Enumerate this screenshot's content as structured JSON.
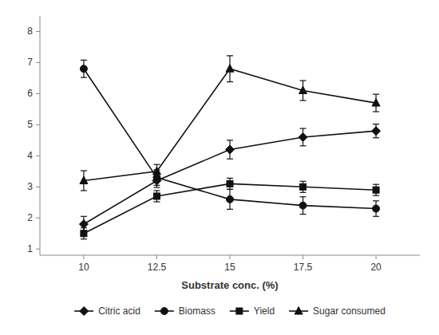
{
  "chart_data": {
    "type": "line",
    "xlabel": "Substrate conc. (%)",
    "x": [
      10,
      12.5,
      15,
      17.5,
      20
    ],
    "series": [
      {
        "name": "Citric acid",
        "color": "#111111",
        "marker": "diamond",
        "values": [
          1.8,
          3.2,
          4.2,
          4.6,
          4.8
        ],
        "errors": [
          0.25,
          0.22,
          0.3,
          0.28,
          0.22
        ]
      },
      {
        "name": "Biomass",
        "color": "#111111",
        "marker": "circle",
        "values": [
          6.8,
          3.3,
          2.6,
          2.4,
          2.3
        ],
        "errors": [
          0.28,
          0.25,
          0.32,
          0.28,
          0.25
        ]
      },
      {
        "name": "Yield",
        "color": "#111111",
        "marker": "square",
        "values": [
          1.5,
          2.7,
          3.1,
          3.0,
          2.9
        ],
        "errors": [
          0.18,
          0.18,
          0.18,
          0.18,
          0.18
        ]
      },
      {
        "name": "Sugar consumed",
        "color": "#111111",
        "marker": "triangle",
        "values": [
          3.2,
          3.5,
          6.8,
          6.1,
          5.7
        ],
        "errors": [
          0.32,
          0.22,
          0.42,
          0.32,
          0.28
        ]
      }
    ],
    "xlim": [
      8.5,
      21.5
    ],
    "xticks": [
      10,
      12.5,
      15,
      17.5,
      20
    ],
    "ylim": [
      0.8,
      8.5
    ],
    "yticks": [
      1,
      2,
      3,
      4,
      5,
      6,
      7,
      8
    ],
    "grid": false,
    "legend": "bottom"
  }
}
